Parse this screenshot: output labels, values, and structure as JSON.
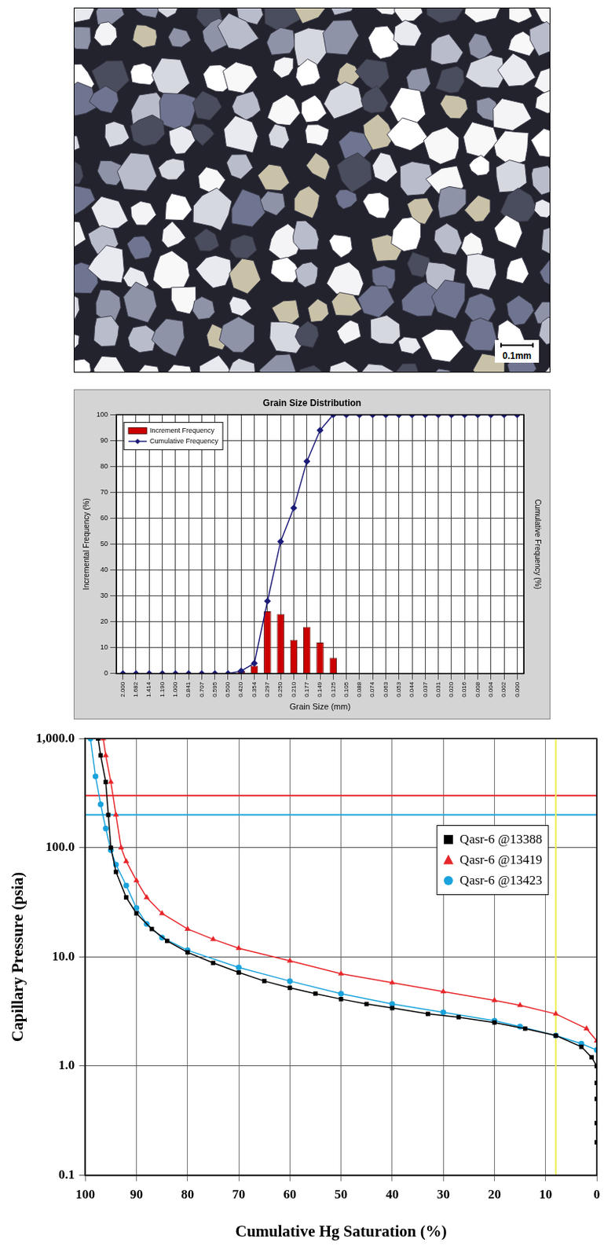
{
  "image": {
    "scale_bar": "0.1mm"
  },
  "chart_data": [
    {
      "type": "bar",
      "title": "Grain Size Distribution",
      "x_label": "Grain Size (mm)",
      "y_label": "Incremental Frequency (%)",
      "y2_label": "Cumulative Frequency (%)",
      "categories": [
        "2.000",
        "1.682",
        "1.414",
        "1.190",
        "1.000",
        "0.841",
        "0.707",
        "0.595",
        "0.500",
        "0.420",
        "0.354",
        "0.297",
        "0.250",
        "0.210",
        "0.177",
        "0.149",
        "0.125",
        "0.105",
        "0.088",
        "0.074",
        "0.063",
        "0.053",
        "0.044",
        "0.037",
        "0.031",
        "0.020",
        "0.016",
        "0.008",
        "0.004",
        "0.002",
        "0.000"
      ],
      "series": [
        {
          "name": "Increment Frequency",
          "type": "bar",
          "color": "#cc0000",
          "values": [
            0,
            0,
            0,
            0,
            0,
            0,
            0,
            0,
            0,
            1,
            3,
            24,
            23,
            13,
            18,
            12,
            6,
            0,
            0,
            0,
            0,
            0,
            0,
            0,
            0,
            0,
            0,
            0,
            0,
            0,
            0
          ]
        },
        {
          "name": "Cumulative Frequency",
          "type": "line",
          "color": "#1c1c78",
          "marker": "diamond",
          "line_style": "solid",
          "values": [
            0,
            0,
            0,
            0,
            0,
            0,
            0,
            0,
            0,
            1,
            4,
            28,
            51,
            64,
            82,
            94,
            100,
            100,
            100,
            100,
            100,
            100,
            100,
            100,
            100,
            100,
            100,
            100,
            100,
            100,
            100
          ]
        }
      ],
      "ylim": [
        0,
        100
      ],
      "yticks": [
        0,
        10,
        20,
        30,
        40,
        50,
        60,
        70,
        80,
        90,
        100
      ],
      "grid": true,
      "legend": "upper left"
    },
    {
      "type": "scatter",
      "x_label": "Cumulative Hg Saturation (%)",
      "y_label": "Capillary Pressure (psia)",
      "xlim": [
        100,
        0
      ],
      "xticks": [
        100,
        90,
        80,
        70,
        60,
        50,
        40,
        30,
        20,
        10,
        0
      ],
      "ylim": [
        0.1,
        1000
      ],
      "yticks": [
        0.1,
        {
          "value": 1,
          "label": "1.0"
        },
        {
          "value": 10,
          "label": "10.0"
        },
        {
          "value": 100,
          "label": "100.0"
        },
        {
          "value": 1000,
          "label": "1,000.0"
        }
      ],
      "log": "y",
      "grid": true,
      "legend": "upper right",
      "series": [
        {
          "name": "Qasr-6 @13388",
          "color": "#000000",
          "marker": "square",
          "line_style": "solid",
          "x": [
            0,
            0,
            0,
            0,
            0,
            1,
            3,
            8,
            14,
            20,
            27,
            33,
            40,
            45,
            50,
            55,
            60,
            65,
            70,
            75,
            80,
            84,
            87,
            90,
            92,
            94,
            95,
            95.5,
            96,
            97,
            97.5
          ],
          "values": [
            0.2,
            0.3,
            0.5,
            0.7,
            1.0,
            1.2,
            1.5,
            1.9,
            2.2,
            2.5,
            2.8,
            3.0,
            3.4,
            3.7,
            4.1,
            4.6,
            5.2,
            6.0,
            7.2,
            8.8,
            11,
            14,
            18,
            25,
            35,
            60,
            100,
            200,
            400,
            700,
            1000
          ]
        },
        {
          "name": "Qasr-6 @13419",
          "color": "#e8262a",
          "marker": "triangle",
          "line_style": "solid",
          "x": [
            0,
            2,
            8,
            15,
            20,
            30,
            40,
            50,
            60,
            70,
            75,
            80,
            85,
            88,
            90,
            92,
            93,
            94,
            95,
            96,
            96.5
          ],
          "values": [
            1.7,
            2.2,
            3.0,
            3.6,
            4.0,
            4.8,
            5.8,
            7.0,
            9.2,
            12,
            14.5,
            18,
            25,
            35,
            50,
            75,
            100,
            200,
            400,
            700,
            1000
          ]
        },
        {
          "name": "Qasr-6 @13423",
          "color": "#1aa3dc",
          "marker": "circle",
          "line_style": "solid",
          "x": [
            0,
            3,
            8,
            15,
            20,
            30,
            40,
            50,
            60,
            70,
            80,
            85,
            88,
            90,
            92,
            94,
            95,
            96,
            97,
            98,
            99
          ],
          "values": [
            1.4,
            1.6,
            1.9,
            2.3,
            2.6,
            3.1,
            3.7,
            4.6,
            6.0,
            8.0,
            11.5,
            15,
            20,
            28,
            45,
            70,
            95,
            150,
            250,
            450,
            1000
          ]
        }
      ],
      "reference_lines": [
        {
          "axis": "y",
          "value": 300,
          "color": "#e8262a"
        },
        {
          "axis": "y",
          "value": 200,
          "color": "#1aa3dc"
        },
        {
          "axis": "x",
          "value": 8,
          "color": "#eeee55"
        }
      ]
    }
  ]
}
